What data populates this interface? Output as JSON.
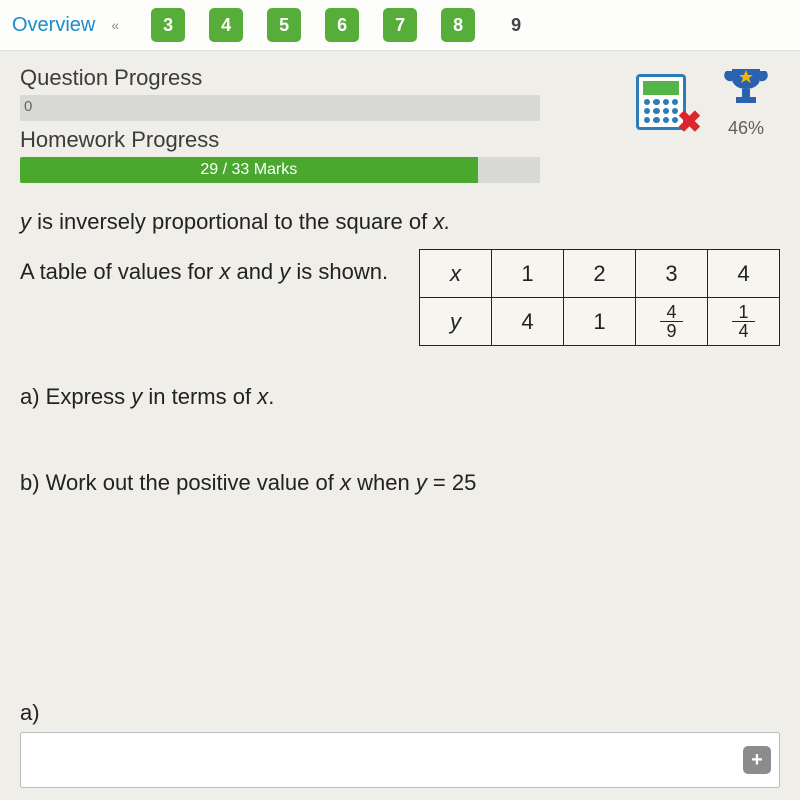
{
  "topbar": {
    "overview": "Overview",
    "chev": "«",
    "items": [
      {
        "n": "3",
        "style": "green"
      },
      {
        "n": "4",
        "style": "green"
      },
      {
        "n": "5",
        "style": "green"
      },
      {
        "n": "6",
        "style": "green"
      },
      {
        "n": "7",
        "style": "green"
      },
      {
        "n": "8",
        "style": "green"
      },
      {
        "n": "9",
        "style": "plain"
      }
    ]
  },
  "progress": {
    "question_label": "Question Progress",
    "question_value_pct": 0,
    "question_value_text": "0",
    "homework_label": "Homework Progress",
    "homework_value_pct": 88,
    "homework_text": "29 / 33 Marks",
    "bar_bg": "#d8d8d6",
    "bar_fill": "#4aa82e"
  },
  "icons": {
    "calculator_name": "calculator-icon",
    "trophy_pct": "46%"
  },
  "question": {
    "line1_pre": "y",
    "line1_mid": " is inversely proportional to the square of ",
    "line1_post": "x.",
    "line2_pre": "A table of values for ",
    "line2_mid1": "x",
    "line2_and": " and ",
    "line2_mid2": "y",
    "line2_post": " is shown.",
    "table": {
      "headers": [
        "x",
        "1",
        "2",
        "3",
        "4"
      ],
      "row_label": "y",
      "row": [
        "4",
        "1",
        {
          "num": "4",
          "den": "9"
        },
        {
          "num": "1",
          "den": "4"
        }
      ]
    },
    "part_a": "a) Express y in terms of x.",
    "part_b": "b) Work out the positive value of x when y = 25"
  },
  "answer": {
    "label": "a)",
    "plus": "+"
  }
}
